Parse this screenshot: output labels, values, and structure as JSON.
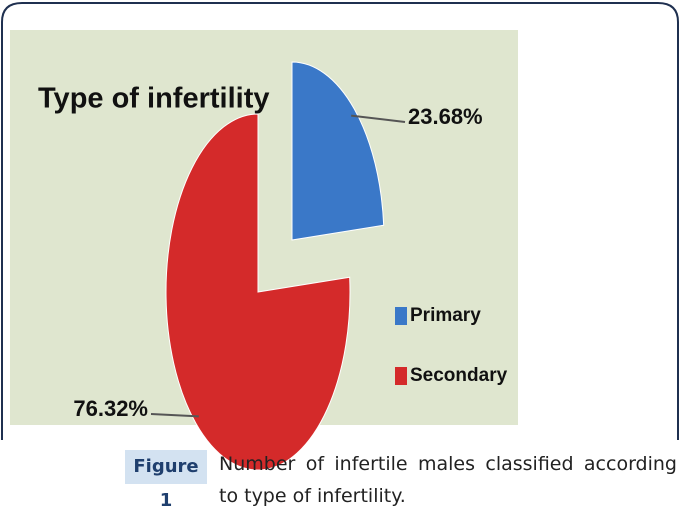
{
  "chart_data": {
    "type": "pie",
    "title": "Type of infertility",
    "categories": [
      "Primary",
      "Secondary"
    ],
    "values": [
      23.68,
      76.32
    ],
    "value_labels": [
      "23.68%",
      "76.32%"
    ],
    "colors": [
      "#3a78c8",
      "#d42a2a"
    ],
    "legend": "right"
  },
  "figure": {
    "label": "Figure 1",
    "caption": "Number of infertile males classified according to type of infertility."
  }
}
